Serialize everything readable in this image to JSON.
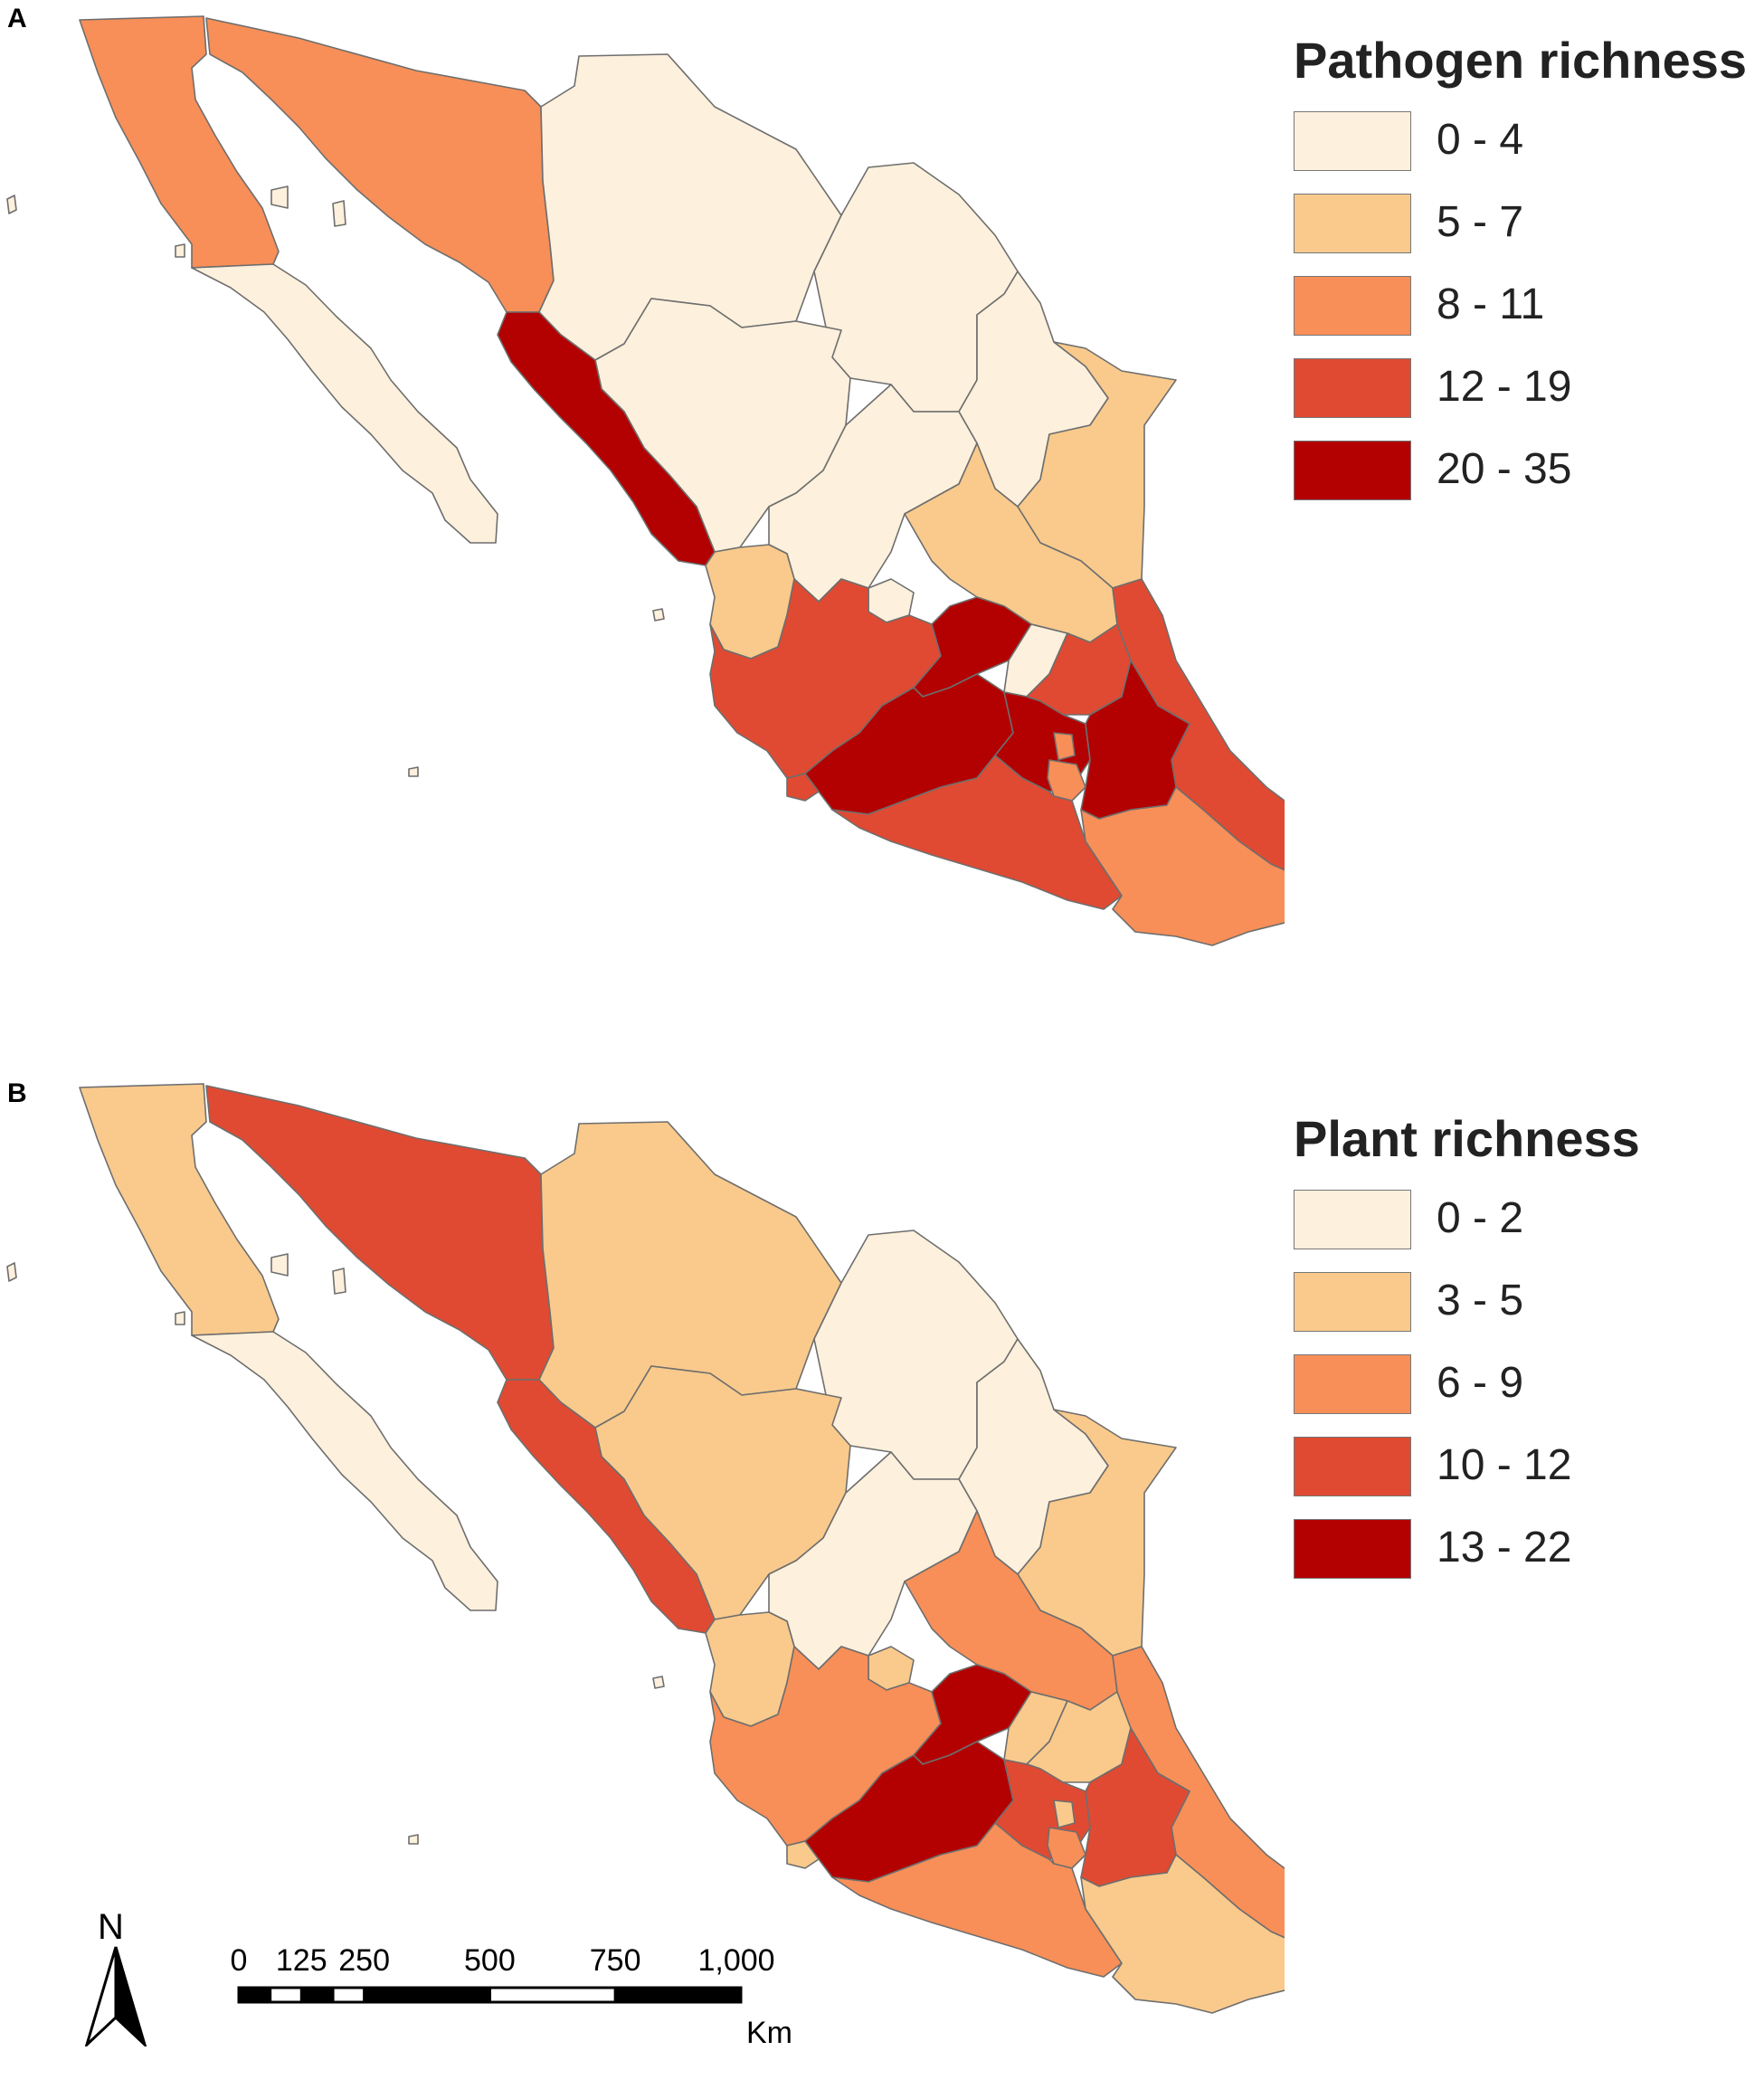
{
  "panel_a": {
    "letter": "A",
    "legend_title": "Pathogen richness",
    "classes": [
      {
        "label": "0 - 4",
        "color": "#fdf0dc"
      },
      {
        "label": "5 - 7",
        "color": "#f9ca8c"
      },
      {
        "label": "8 - 11",
        "color": "#f88f58"
      },
      {
        "label": "12 - 19",
        "color": "#e04a32"
      },
      {
        "label": "20 - 35",
        "color": "#b30000"
      }
    ]
  },
  "panel_b": {
    "letter": "B",
    "legend_title": "Plant richness",
    "classes": [
      {
        "label": "0 - 2",
        "color": "#fdf0dc"
      },
      {
        "label": "3 - 5",
        "color": "#f9ca8c"
      },
      {
        "label": "6 - 9",
        "color": "#f88f58"
      },
      {
        "label": "10 - 12",
        "color": "#e04a32"
      },
      {
        "label": "13 - 22",
        "color": "#b30000"
      }
    ]
  },
  "north_arrow": {
    "letter": "N"
  },
  "scale_bar": {
    "ticks": [
      "0",
      "125",
      "250",
      "500",
      "750",
      "1,000"
    ],
    "tick_values_km": [
      0,
      125,
      250,
      500,
      750,
      1000
    ],
    "unit": "Km"
  }
}
